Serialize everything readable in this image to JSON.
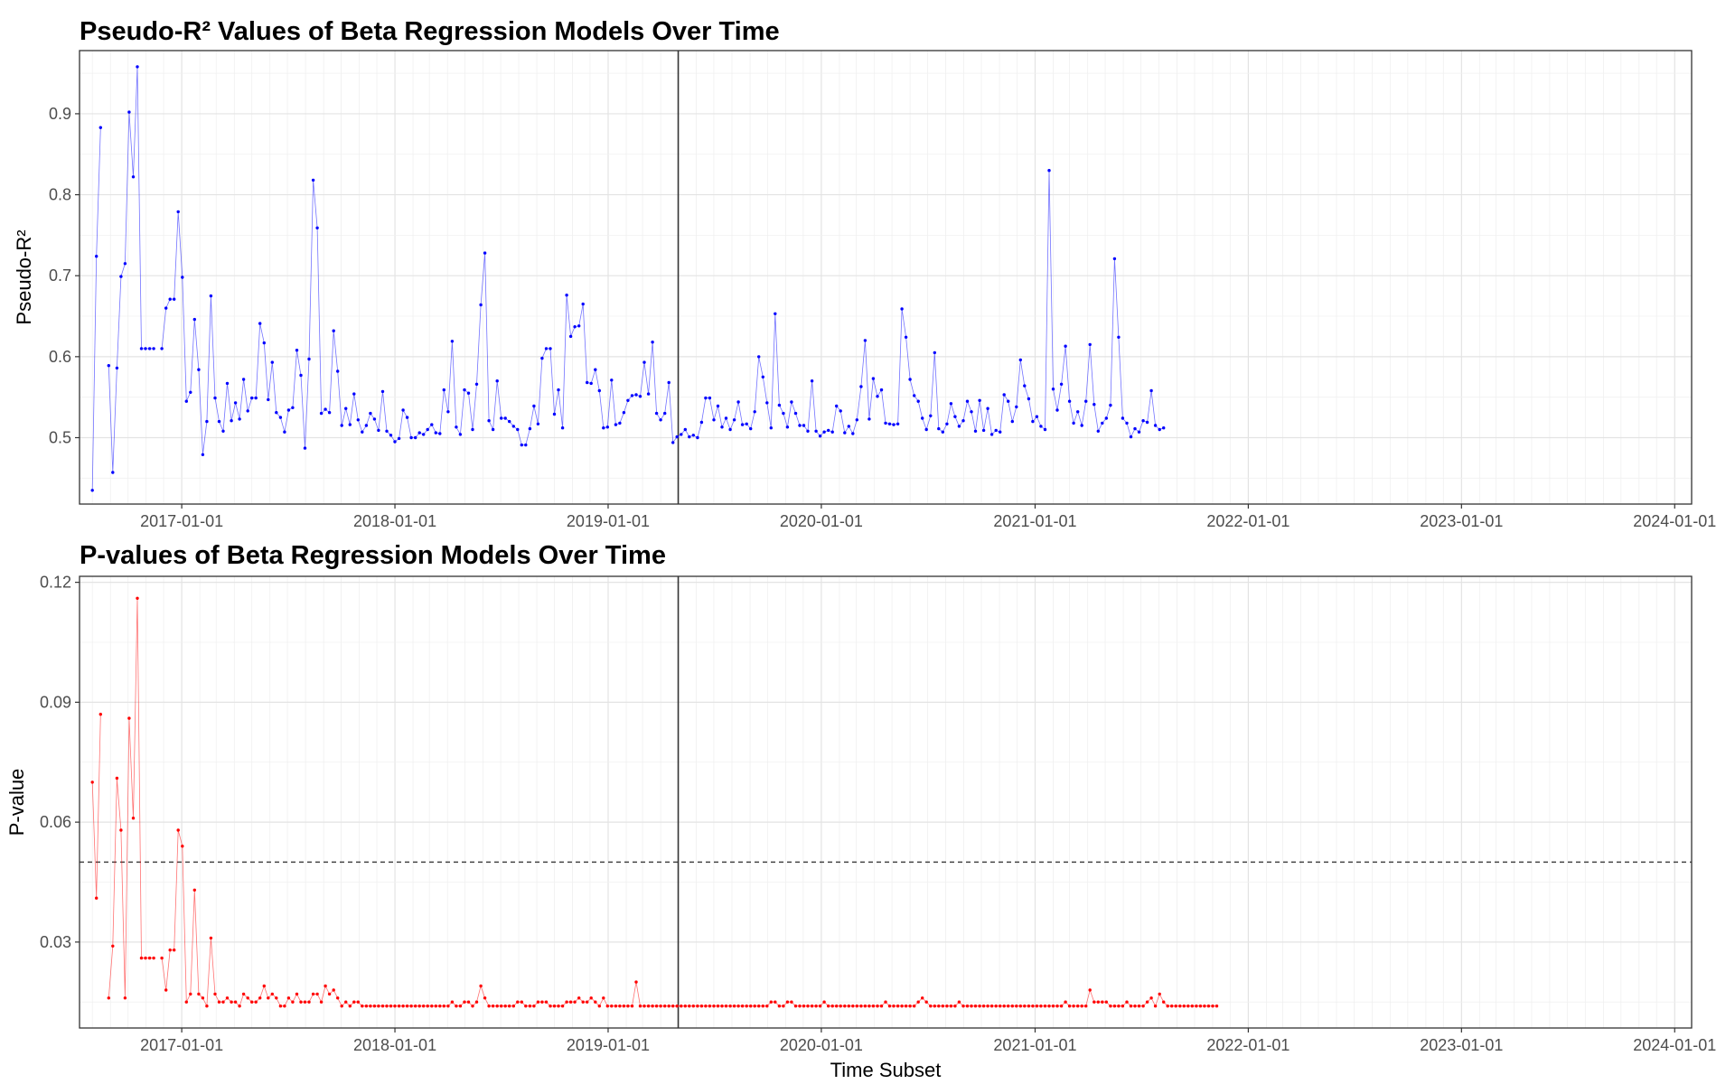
{
  "chart_data": [
    {
      "type": "line",
      "title": "Pseudo-R² Values of Beta Regression Models Over Time",
      "xlabel": "",
      "ylabel": "Pseudo-R²",
      "x_ticks": [
        "2017-01-01",
        "2018-01-01",
        "2019-01-01",
        "2020-01-01",
        "2021-01-01",
        "2022-01-01",
        "2023-01-01",
        "2024-01-01"
      ],
      "y_ticks": [
        0.5,
        0.6,
        0.7,
        0.8,
        0.9
      ],
      "xlim": [
        "2016-07-10",
        "2024-01-30"
      ],
      "ylim": [
        0.418,
        0.978
      ],
      "grid": true,
      "vline": "2019-05-01",
      "series_color": "#0000ff",
      "x_start": "2016-08-01",
      "x_step_days": 7,
      "values": [
        0.435,
        0.724,
        0.883,
        null,
        0.589,
        0.457,
        0.586,
        0.699,
        0.715,
        0.902,
        0.822,
        0.958,
        0.61,
        0.61,
        0.61,
        0.61,
        null,
        0.61,
        0.66,
        0.671,
        0.671,
        0.779,
        0.698,
        0.545,
        0.556,
        0.646,
        0.584,
        0.479,
        0.52,
        0.675,
        0.549,
        0.52,
        0.508,
        0.567,
        0.521,
        0.543,
        0.523,
        0.572,
        0.533,
        0.549,
        0.549,
        0.641,
        0.617,
        0.547,
        0.593,
        0.531,
        0.525,
        0.507,
        0.534,
        0.537,
        0.608,
        0.577,
        0.487,
        0.597,
        0.818,
        0.759,
        0.53,
        0.535,
        0.531,
        0.632,
        0.582,
        0.515,
        0.536,
        0.516,
        0.554,
        0.522,
        0.507,
        0.515,
        0.53,
        0.523,
        0.509,
        0.557,
        0.508,
        0.503,
        0.495,
        0.499,
        0.534,
        0.525,
        0.5,
        0.5,
        0.506,
        0.504,
        0.51,
        0.516,
        0.506,
        0.505,
        0.559,
        0.532,
        0.619,
        0.513,
        0.504,
        0.559,
        0.555,
        0.51,
        0.566,
        0.664,
        0.728,
        0.521,
        0.51,
        0.57,
        0.524,
        0.524,
        0.52,
        0.514,
        0.51,
        0.491,
        0.491,
        0.511,
        0.539,
        0.517,
        0.598,
        0.61,
        0.61,
        0.529,
        0.559,
        0.512,
        0.676,
        0.625,
        0.637,
        0.638,
        0.665,
        0.568,
        0.567,
        0.584,
        0.558,
        0.512,
        0.513,
        0.571,
        0.516,
        0.518,
        0.531,
        0.546,
        0.552,
        0.553,
        0.551,
        0.593,
        0.554,
        0.618,
        0.53,
        0.522,
        0.53,
        0.568,
        0.494,
        0.501,
        0.504,
        0.51,
        0.501,
        0.503,
        0.5,
        0.519,
        0.549,
        0.549,
        0.522,
        0.539,
        0.513,
        0.524,
        0.51,
        0.522,
        0.544,
        0.516,
        0.517,
        0.511,
        0.532,
        0.6,
        0.575,
        0.543,
        0.512,
        0.653,
        0.54,
        0.53,
        0.513,
        0.544,
        0.53,
        0.515,
        0.515,
        0.508,
        0.57,
        0.508,
        0.502,
        0.507,
        0.509,
        0.507,
        0.539,
        0.533,
        0.506,
        0.514,
        0.505,
        0.522,
        0.563,
        0.62,
        0.523,
        0.573,
        0.551,
        0.559,
        0.518,
        0.517,
        0.516,
        0.517,
        0.659,
        0.624,
        0.572,
        0.552,
        0.545,
        0.524,
        0.51,
        0.527,
        0.605,
        0.511,
        0.507,
        0.517,
        0.542,
        0.526,
        0.514,
        0.521,
        0.545,
        0.532,
        0.508,
        0.546,
        0.509,
        0.536,
        0.504,
        0.509,
        0.507,
        0.553,
        0.545,
        0.52,
        0.538,
        0.596,
        0.564,
        0.548,
        0.52,
        0.526,
        0.514,
        0.51,
        0.83,
        0.56,
        0.534,
        0.566,
        0.613,
        0.545,
        0.518,
        0.532,
        0.515,
        0.545,
        0.615,
        0.541,
        0.508,
        0.518,
        0.524,
        0.54,
        0.721,
        0.624,
        0.524,
        0.518,
        0.501,
        0.511,
        0.507,
        0.521,
        0.519,
        0.558,
        0.515,
        0.51,
        0.512
      ]
    },
    {
      "type": "line",
      "title": "P-values of Beta Regression Models Over Time",
      "xlabel": "Time Subset",
      "ylabel": "P-value",
      "x_ticks": [
        "2017-01-01",
        "2018-01-01",
        "2019-01-01",
        "2020-01-01",
        "2021-01-01",
        "2022-01-01",
        "2023-01-01",
        "2024-01-01"
      ],
      "y_ticks": [
        0.03,
        0.06,
        0.09,
        0.12
      ],
      "xlim": [
        "2016-07-10",
        "2024-01-30"
      ],
      "ylim": [
        0.0085,
        0.1215
      ],
      "grid": true,
      "vline": "2019-05-01",
      "hline": 0.05,
      "series_color": "#ff0000",
      "x_start": "2016-08-01",
      "x_step_days": 7,
      "values": [
        0.07,
        0.041,
        0.087,
        null,
        0.016,
        0.029,
        0.071,
        0.058,
        0.016,
        0.086,
        0.061,
        0.116,
        0.026,
        0.026,
        0.026,
        0.026,
        null,
        0.026,
        0.018,
        0.028,
        0.028,
        0.058,
        0.054,
        0.015,
        0.017,
        0.043,
        0.017,
        0.016,
        0.014,
        0.031,
        0.017,
        0.015,
        0.015,
        0.016,
        0.015,
        0.015,
        0.014,
        0.017,
        0.016,
        0.015,
        0.015,
        0.016,
        0.019,
        0.016,
        0.017,
        0.016,
        0.014,
        0.014,
        0.016,
        0.015,
        0.017,
        0.015,
        0.015,
        0.015,
        0.017,
        0.017,
        0.015,
        0.019,
        0.017,
        0.018,
        0.016,
        0.014,
        0.015,
        0.014,
        0.015,
        0.015,
        0.014,
        0.014,
        0.014,
        0.014,
        0.014,
        0.014,
        0.014,
        0.014,
        0.014,
        0.014,
        0.014,
        0.014,
        0.014,
        0.014,
        0.014,
        0.014,
        0.014,
        0.014,
        0.014,
        0.014,
        0.014,
        0.014,
        0.015,
        0.014,
        0.014,
        0.015,
        0.015,
        0.014,
        0.015,
        0.019,
        0.016,
        0.014,
        0.014,
        0.014,
        0.014,
        0.014,
        0.014,
        0.014,
        0.015,
        0.015,
        0.014,
        0.014,
        0.014,
        0.015,
        0.015,
        0.015,
        0.014,
        0.014,
        0.014,
        0.014,
        0.015,
        0.015,
        0.015,
        0.016,
        0.015,
        0.015,
        0.016,
        0.015,
        0.014,
        0.016,
        0.014,
        0.014,
        0.014,
        0.014,
        0.014,
        0.014,
        0.014,
        0.02,
        0.014,
        0.014,
        0.014,
        0.014,
        0.014,
        0.014,
        0.014,
        0.014,
        0.014,
        0.014,
        0.014,
        0.014,
        0.014,
        0.014,
        0.014,
        0.014,
        0.014,
        0.014,
        0.014,
        0.014,
        0.014,
        0.014,
        0.014,
        0.014,
        0.014,
        0.014,
        0.014,
        0.014,
        0.014,
        0.014,
        0.014,
        0.014,
        0.015,
        0.015,
        0.014,
        0.014,
        0.015,
        0.015,
        0.014,
        0.014,
        0.014,
        0.014,
        0.014,
        0.014,
        0.014,
        0.015,
        0.014,
        0.014,
        0.014,
        0.014,
        0.014,
        0.014,
        0.014,
        0.014,
        0.014,
        0.014,
        0.014,
        0.014,
        0.014,
        0.014,
        0.015,
        0.014,
        0.014,
        0.014,
        0.014,
        0.014,
        0.014,
        0.014,
        0.015,
        0.016,
        0.015,
        0.014,
        0.014,
        0.014,
        0.014,
        0.014,
        0.014,
        0.014,
        0.015,
        0.014,
        0.014,
        0.014,
        0.014,
        0.014,
        0.014,
        0.014,
        0.014,
        0.014,
        0.014,
        0.014,
        0.014,
        0.014,
        0.014,
        0.014,
        0.014,
        0.014,
        0.014,
        0.014,
        0.014,
        0.014,
        0.014,
        0.014,
        0.014,
        0.014,
        0.015,
        0.014,
        0.014,
        0.014,
        0.014,
        0.014,
        0.018,
        0.015,
        0.015,
        0.015,
        0.015,
        0.014,
        0.014,
        0.014,
        0.014,
        0.015,
        0.014,
        0.014,
        0.014,
        0.014,
        0.015,
        0.016,
        0.014,
        0.017,
        0.015,
        0.014,
        0.014,
        0.014,
        0.014,
        0.014,
        0.014,
        0.014,
        0.014,
        0.014,
        0.014,
        0.014,
        0.014,
        0.014
      ]
    }
  ]
}
